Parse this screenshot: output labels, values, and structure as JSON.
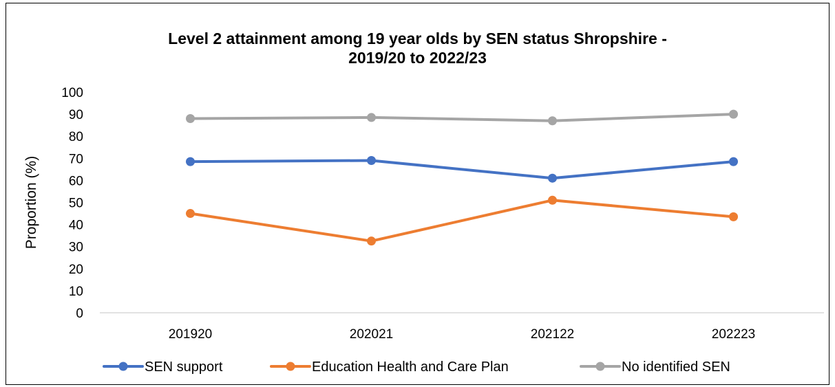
{
  "chart_data": {
    "type": "line",
    "title_line1": "Level 2 attainment among 19 year olds by SEN status Shropshire -",
    "title_line2": "2019/20 to 2022/23",
    "xlabel": "",
    "ylabel": "Proportion (%)",
    "ylim": [
      0,
      100
    ],
    "yticks": [
      0,
      10,
      20,
      30,
      40,
      50,
      60,
      70,
      80,
      90,
      100
    ],
    "categories": [
      "201920",
      "202021",
      "202122",
      "202223"
    ],
    "grid": false,
    "legend_position": "bottom",
    "series": [
      {
        "name": "SEN support",
        "color": "#4472C4",
        "values": [
          68.5,
          69.0,
          61.0,
          68.5
        ]
      },
      {
        "name": "Education Health and Care Plan",
        "color": "#ED7D31",
        "values": [
          45.0,
          32.5,
          51.0,
          43.5
        ]
      },
      {
        "name": "No identified SEN",
        "color": "#A5A5A5",
        "values": [
          88.0,
          88.5,
          87.0,
          90.0
        ]
      }
    ]
  }
}
